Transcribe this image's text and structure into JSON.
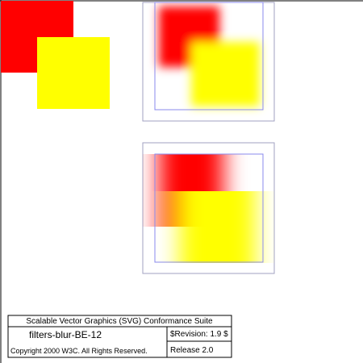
{
  "colors": {
    "primary_square": "#ff0000",
    "secondary_square": "#ffff00",
    "filter_region_outline": "#a0a0c0",
    "filter_target_outline": "#8888ee",
    "frame": "#000000",
    "copyright_text": "#0000ff"
  },
  "test_suite": {
    "title": "Scalable Vector Graphics (SVG) Conformance Suite",
    "test_name": "filters-blur-BE-12",
    "revision": "$Revision: 1.9 $",
    "copyright": "Copyright 2000 W3C. All Rights Reserved.",
    "release": "Release 2.0"
  }
}
